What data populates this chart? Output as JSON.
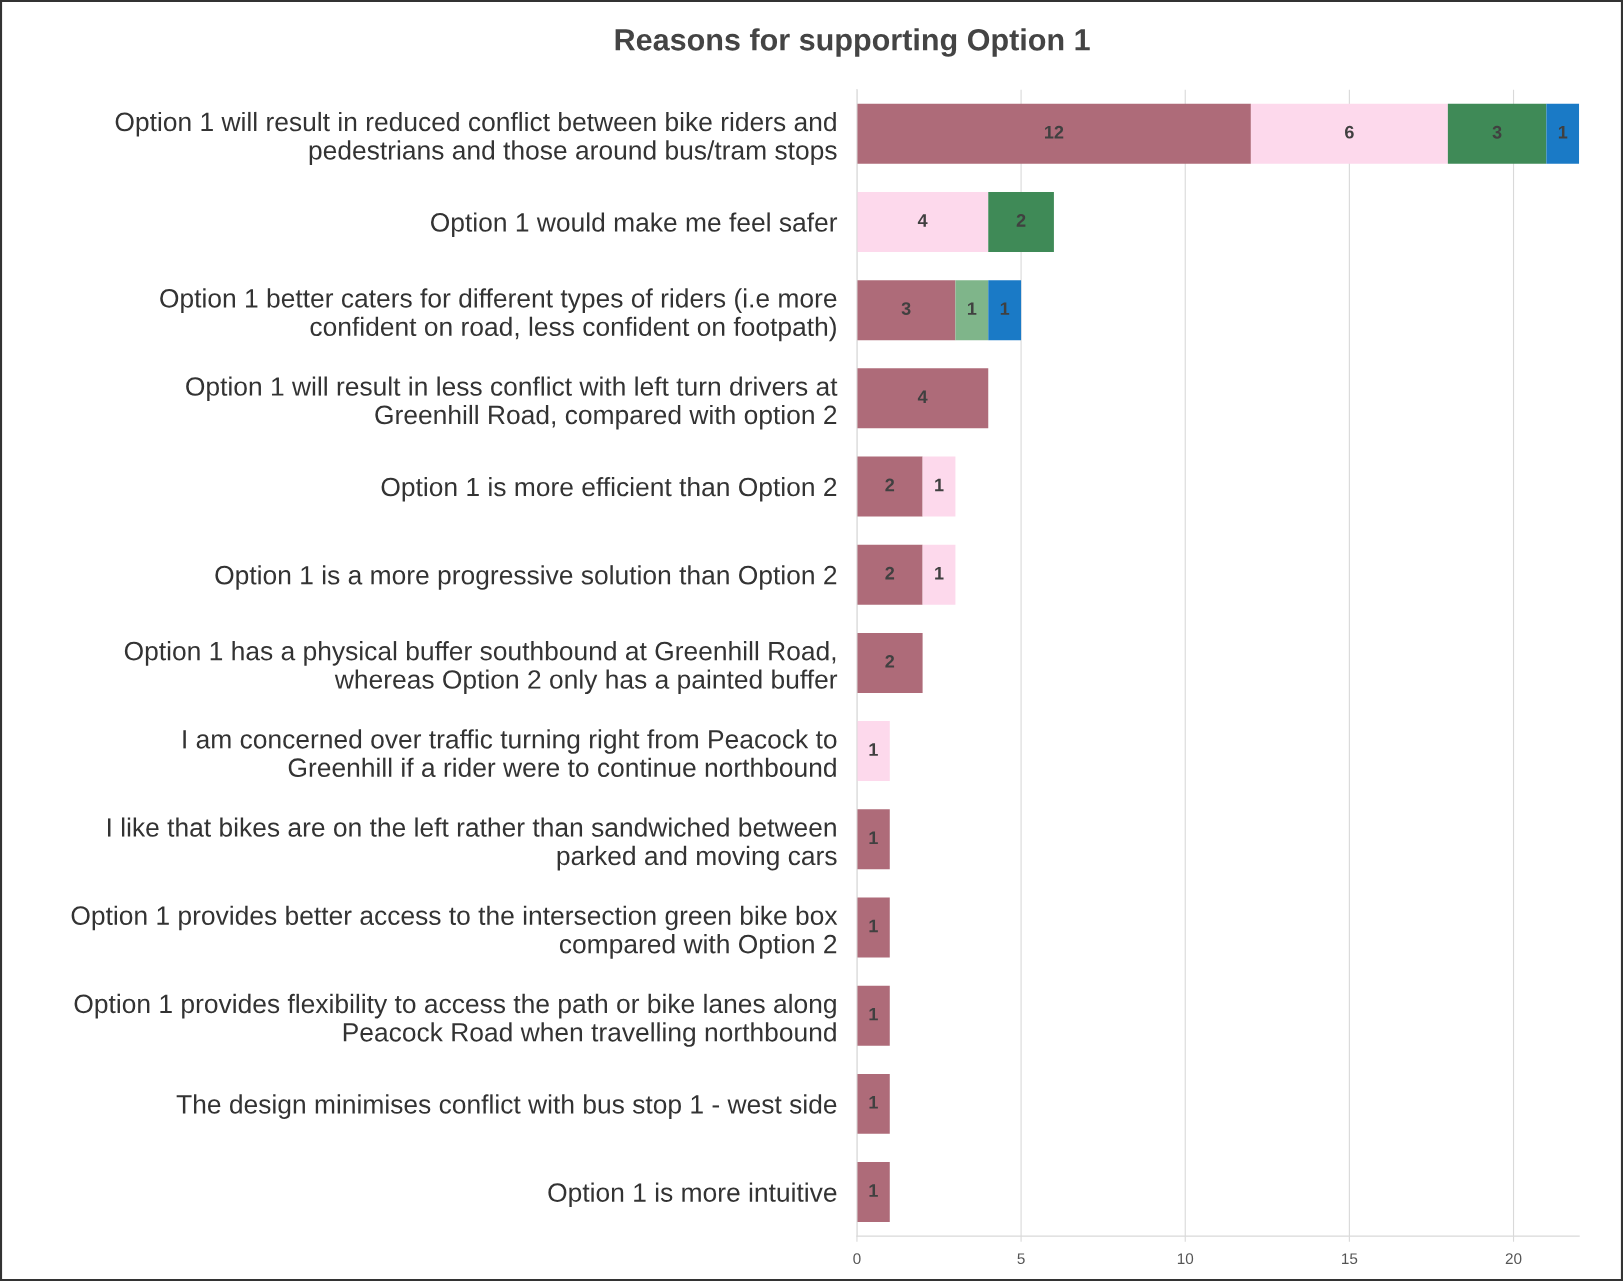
{
  "chart_data": {
    "type": "bar",
    "orientation": "horizontal",
    "stacked": true,
    "title": "Reasons for supporting Option 1",
    "categories": [
      "Option 1 will result in reduced conflict between bike riders and\npedestrians and those around bus/tram stops",
      "Option 1 would make me feel safer",
      "Option 1 better caters for different types of riders (i.e more\nconfident on road, less confident on footpath)",
      "Option 1 will result in less conflict with left turn drivers at\nGreenhill Road, compared with option 2",
      "Option 1 is more efficient than Option 2",
      "Option 1 is a more progressive solution than Option 2",
      "Option 1 has a physical buffer southbound at Greenhill Road,\nwhereas Option 2 only has a painted buffer",
      "I am concerned over traffic turning right from Peacock to\nGreenhill if a rider were to continue northbound",
      "I like that bikes are on the left rather than sandwiched between\nparked and moving cars",
      "Option 1 provides better access to the intersection green bike box\ncompared with Option 2",
      "Option 1 provides flexibility to access the path or bike lanes along\nPeacock Road when travelling northbound",
      "The design minimises conflict with bus stop 1 - west side",
      "Option 1 is more intuitive"
    ],
    "series": [
      {
        "color": "#ae6b79",
        "values": [
          12,
          null,
          3,
          4,
          2,
          2,
          2,
          null,
          1,
          1,
          1,
          1,
          1
        ]
      },
      {
        "color": "#fdd9ec",
        "values": [
          6,
          4,
          null,
          null,
          1,
          1,
          null,
          1,
          null,
          null,
          null,
          null,
          null
        ]
      },
      {
        "color": "#3f8a57",
        "values": [
          3,
          2,
          null,
          null,
          null,
          null,
          null,
          null,
          null,
          null,
          null,
          null,
          null
        ]
      },
      {
        "color": "#7fb58a",
        "values": [
          null,
          null,
          1,
          null,
          null,
          null,
          null,
          null,
          null,
          null,
          null,
          null,
          null
        ]
      },
      {
        "color": "#1a7ac6",
        "values": [
          1,
          null,
          1,
          null,
          null,
          null,
          null,
          null,
          null,
          null,
          null,
          null,
          null
        ]
      }
    ],
    "xlim": [
      0,
      22
    ],
    "xticks": [
      0,
      5,
      10,
      15,
      20
    ],
    "grid": "x",
    "data_labels": true,
    "legend": false
  }
}
